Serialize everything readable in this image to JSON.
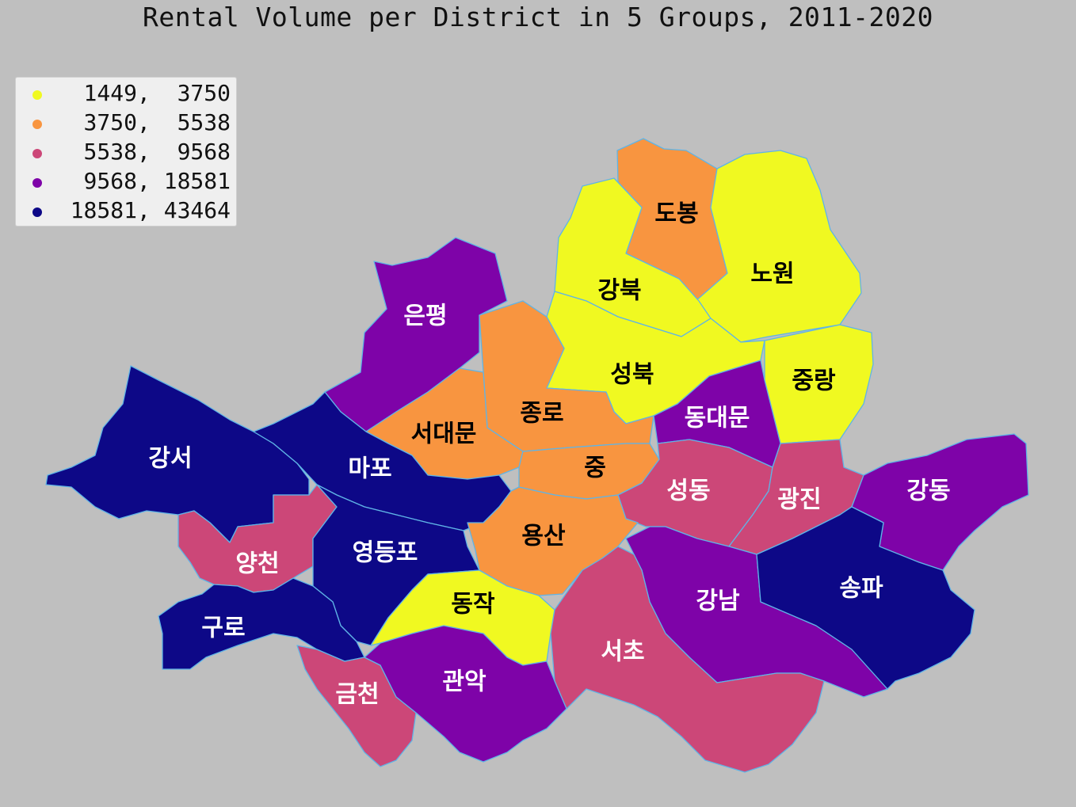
{
  "title": "Rental Volume per District in 5 Groups, 2011-2020",
  "legend": [
    {
      "label": " 1449,  3750",
      "color": "#f0f921"
    },
    {
      "label": " 3750,  5538",
      "color": "#f89540"
    },
    {
      "label": " 5538,  9568",
      "color": "#cc4778"
    },
    {
      "label": " 9568, 18581",
      "color": "#7e03a8"
    },
    {
      "label": "18581, 43464",
      "color": "#0d0887"
    }
  ],
  "districts": [
    {
      "id": "dobong",
      "name": "도봉",
      "group": 1
    },
    {
      "id": "nowon",
      "name": "노원",
      "group": 0
    },
    {
      "id": "gangbuk",
      "name": "강북",
      "group": 0
    },
    {
      "id": "eunpyeong",
      "name": "은평",
      "group": 3
    },
    {
      "id": "seongbuk",
      "name": "성북",
      "group": 0
    },
    {
      "id": "jungnang",
      "name": "중랑",
      "group": 0
    },
    {
      "id": "jongno",
      "name": "종로",
      "group": 1
    },
    {
      "id": "dongdaemun",
      "name": "동대문",
      "group": 3
    },
    {
      "id": "seodaemun",
      "name": "서대문",
      "group": 1
    },
    {
      "id": "gangseo",
      "name": "강서",
      "group": 4
    },
    {
      "id": "mapo",
      "name": "마포",
      "group": 4
    },
    {
      "id": "jung",
      "name": "중",
      "group": 1
    },
    {
      "id": "seongdong",
      "name": "성동",
      "group": 2
    },
    {
      "id": "gwangjin",
      "name": "광진",
      "group": 2
    },
    {
      "id": "gangdong",
      "name": "강동",
      "group": 3
    },
    {
      "id": "yongsan",
      "name": "용산",
      "group": 1
    },
    {
      "id": "yangcheon",
      "name": "양천",
      "group": 2
    },
    {
      "id": "yeongdeungpo",
      "name": "영등포",
      "group": 4
    },
    {
      "id": "dongjak",
      "name": "동작",
      "group": 0
    },
    {
      "id": "gangnam",
      "name": "강남",
      "group": 3
    },
    {
      "id": "songpa",
      "name": "송파",
      "group": 4
    },
    {
      "id": "guro",
      "name": "구로",
      "group": 4
    },
    {
      "id": "seocho",
      "name": "서초",
      "group": 2
    },
    {
      "id": "geumcheon",
      "name": "금천",
      "group": 2
    },
    {
      "id": "gwanak",
      "name": "관악",
      "group": 3
    }
  ]
}
